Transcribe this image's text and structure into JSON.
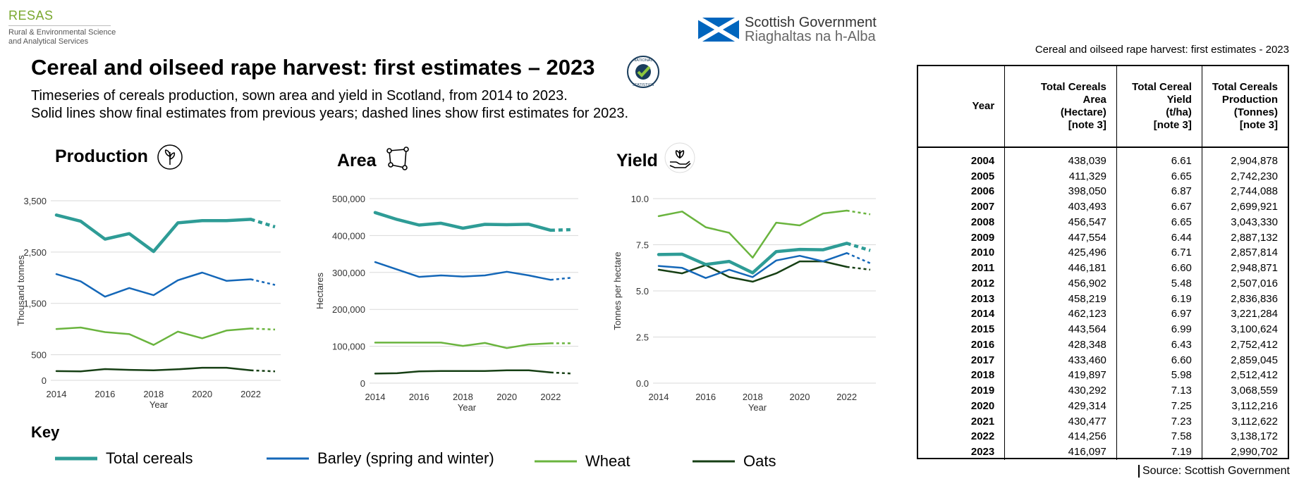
{
  "header": {
    "resas_name": "RESAS",
    "resas_sub_1": "Rural & Environmental Science",
    "resas_sub_2": "and Analytical Services",
    "gov_line_1": "Scottish Government",
    "gov_line_2": "Riaghaltas na h-Alba",
    "title": "Cereal and oilseed rape harvest: first estimates – 2023",
    "badge_line_1": "NATIONAL",
    "badge_line_2": "STATISTICS",
    "subtitle_1": "Timeseries of cereals production, sown area and yield in Scotland, from 2014 to 2023.",
    "subtitle_2": "Solid lines show final estimates from previous years; dashed lines show first estimates for 2023."
  },
  "colors": {
    "total": "#2e9c96",
    "barley": "#1467b8",
    "wheat": "#6ab43e",
    "oats": "#163f14"
  },
  "chart_data": [
    {
      "type": "line",
      "title": "Production",
      "icon": "sprout-icon",
      "xlabel": "Year",
      "ylabel": "Thousand tonnes",
      "x": [
        2014,
        2015,
        2016,
        2017,
        2018,
        2019,
        2020,
        2021,
        2022,
        2023
      ],
      "xticks": [
        2014,
        2016,
        2018,
        2020,
        2022
      ],
      "xlim": [
        2014,
        2023
      ],
      "ylim": [
        0,
        3500
      ],
      "yticks": [
        0,
        500,
        1500,
        2500,
        3500
      ],
      "ytick_labels": [
        "0",
        "500",
        "1,500",
        "2,500",
        "3,500"
      ],
      "grid": true,
      "series": [
        {
          "name": "Total cereals",
          "key": "total",
          "values": [
            3221,
            3101,
            2752,
            2859,
            2512,
            3069,
            3112,
            3113,
            3138,
            2991
          ]
        },
        {
          "name": "Barley (spring and winter)",
          "key": "barley",
          "values": [
            2070,
            1930,
            1630,
            1800,
            1660,
            1950,
            2100,
            1940,
            1970,
            1860
          ]
        },
        {
          "name": "Wheat",
          "key": "wheat",
          "values": [
            1000,
            1030,
            940,
            900,
            690,
            950,
            820,
            970,
            1010,
            990
          ]
        },
        {
          "name": "Oats",
          "key": "oats",
          "values": [
            180,
            175,
            220,
            205,
            195,
            215,
            245,
            245,
            195,
            175
          ]
        }
      ]
    },
    {
      "type": "line",
      "title": "Area",
      "icon": "area-icon",
      "xlabel": "Year",
      "ylabel": "Hectares",
      "x": [
        2014,
        2015,
        2016,
        2017,
        2018,
        2019,
        2020,
        2021,
        2022,
        2023
      ],
      "xticks": [
        2014,
        2016,
        2018,
        2020,
        2022
      ],
      "xlim": [
        2014,
        2023
      ],
      "ylim": [
        0,
        500000
      ],
      "yticks": [
        0,
        100000,
        200000,
        300000,
        400000,
        500000
      ],
      "ytick_labels": [
        "0",
        "100,000",
        "200,000",
        "300,000",
        "400,000",
        "500,000"
      ],
      "grid": true,
      "series": [
        {
          "name": "Total cereals",
          "key": "total",
          "values": [
            462123,
            443564,
            428348,
            433460,
            419897,
            430292,
            429314,
            430477,
            414256,
            416097
          ]
        },
        {
          "name": "Barley (spring and winter)",
          "key": "barley",
          "values": [
            328000,
            308000,
            288000,
            292000,
            289000,
            292000,
            302000,
            292000,
            280000,
            286000
          ]
        },
        {
          "name": "Wheat",
          "key": "wheat",
          "values": [
            110000,
            110000,
            110000,
            110000,
            101000,
            109000,
            95000,
            105000,
            108000,
            108000
          ]
        },
        {
          "name": "Oats",
          "key": "oats",
          "values": [
            26000,
            27000,
            32000,
            33000,
            33000,
            33000,
            35000,
            35000,
            29000,
            26000
          ]
        }
      ]
    },
    {
      "type": "line",
      "title": "Yield",
      "icon": "hand-plant-icon",
      "xlabel": "Year",
      "ylabel": "Tonnes per hectare",
      "x": [
        2014,
        2015,
        2016,
        2017,
        2018,
        2019,
        2020,
        2021,
        2022,
        2023
      ],
      "xticks": [
        2014,
        2016,
        2018,
        2020,
        2022
      ],
      "xlim": [
        2014,
        2023
      ],
      "ylim": [
        0,
        10
      ],
      "yticks": [
        0,
        2.5,
        5,
        7.5,
        10
      ],
      "ytick_labels": [
        "0.0",
        "2.5",
        "5.0",
        "7.5",
        "10.0"
      ],
      "grid": true,
      "series": [
        {
          "name": "Total cereals",
          "key": "total",
          "values": [
            6.97,
            6.99,
            6.43,
            6.6,
            5.98,
            7.13,
            7.25,
            7.23,
            7.58,
            7.19
          ]
        },
        {
          "name": "Barley (spring and winter)",
          "key": "barley",
          "values": [
            6.35,
            6.25,
            5.7,
            6.15,
            5.75,
            6.65,
            6.9,
            6.6,
            7.05,
            6.5
          ]
        },
        {
          "name": "Wheat",
          "key": "wheat",
          "values": [
            9.05,
            9.3,
            8.45,
            8.15,
            6.8,
            8.7,
            8.55,
            9.2,
            9.35,
            9.15
          ]
        },
        {
          "name": "Oats",
          "key": "oats",
          "values": [
            6.15,
            5.95,
            6.4,
            5.75,
            5.5,
            5.95,
            6.6,
            6.6,
            6.3,
            6.15
          ]
        }
      ]
    }
  ],
  "key": {
    "title": "Key",
    "items": [
      {
        "label": "Total cereals",
        "key": "total"
      },
      {
        "label": "Barley (spring and winter)",
        "key": "barley"
      },
      {
        "label": "Wheat",
        "key": "wheat"
      },
      {
        "label": "Oats",
        "key": "oats"
      }
    ]
  },
  "table": {
    "caption": "Cereal and oilseed rape harvest: first estimates - 2023",
    "headers": [
      [
        "Year"
      ],
      [
        "Total Cereals",
        "Area",
        "(Hectare)",
        "[note 3]"
      ],
      [
        "Total Cereal",
        "Yield",
        "(t/ha)",
        "[note 3]"
      ],
      [
        "Total Cereals",
        "Production",
        "(Tonnes)",
        "[note 3]"
      ]
    ],
    "rows": [
      [
        "2004",
        "438,039",
        "6.61",
        "2,904,878"
      ],
      [
        "2005",
        "411,329",
        "6.65",
        "2,742,230"
      ],
      [
        "2006",
        "398,050",
        "6.87",
        "2,744,088"
      ],
      [
        "2007",
        "403,493",
        "6.67",
        "2,699,921"
      ],
      [
        "2008",
        "456,547",
        "6.65",
        "3,043,330"
      ],
      [
        "2009",
        "447,554",
        "6.44",
        "2,887,132"
      ],
      [
        "2010",
        "425,496",
        "6.71",
        "2,857,814"
      ],
      [
        "2011",
        "446,181",
        "6.60",
        "2,948,871"
      ],
      [
        "2012",
        "456,902",
        "5.48",
        "2,507,016"
      ],
      [
        "2013",
        "458,219",
        "6.19",
        "2,836,836"
      ],
      [
        "2014",
        "462,123",
        "6.97",
        "3,221,284"
      ],
      [
        "2015",
        "443,564",
        "6.99",
        "3,100,624"
      ],
      [
        "2016",
        "428,348",
        "6.43",
        "2,752,412"
      ],
      [
        "2017",
        "433,460",
        "6.60",
        "2,859,045"
      ],
      [
        "2018",
        "419,897",
        "5.98",
        "2,512,412"
      ],
      [
        "2019",
        "430,292",
        "7.13",
        "3,068,559"
      ],
      [
        "2020",
        "429,314",
        "7.25",
        "3,112,216"
      ],
      [
        "2021",
        "430,477",
        "7.23",
        "3,112,622"
      ],
      [
        "2022",
        "414,256",
        "7.58",
        "3,138,172"
      ],
      [
        "2023",
        "416,097",
        "7.19",
        "2,990,702"
      ]
    ],
    "source": "Source: Scottish Government"
  }
}
